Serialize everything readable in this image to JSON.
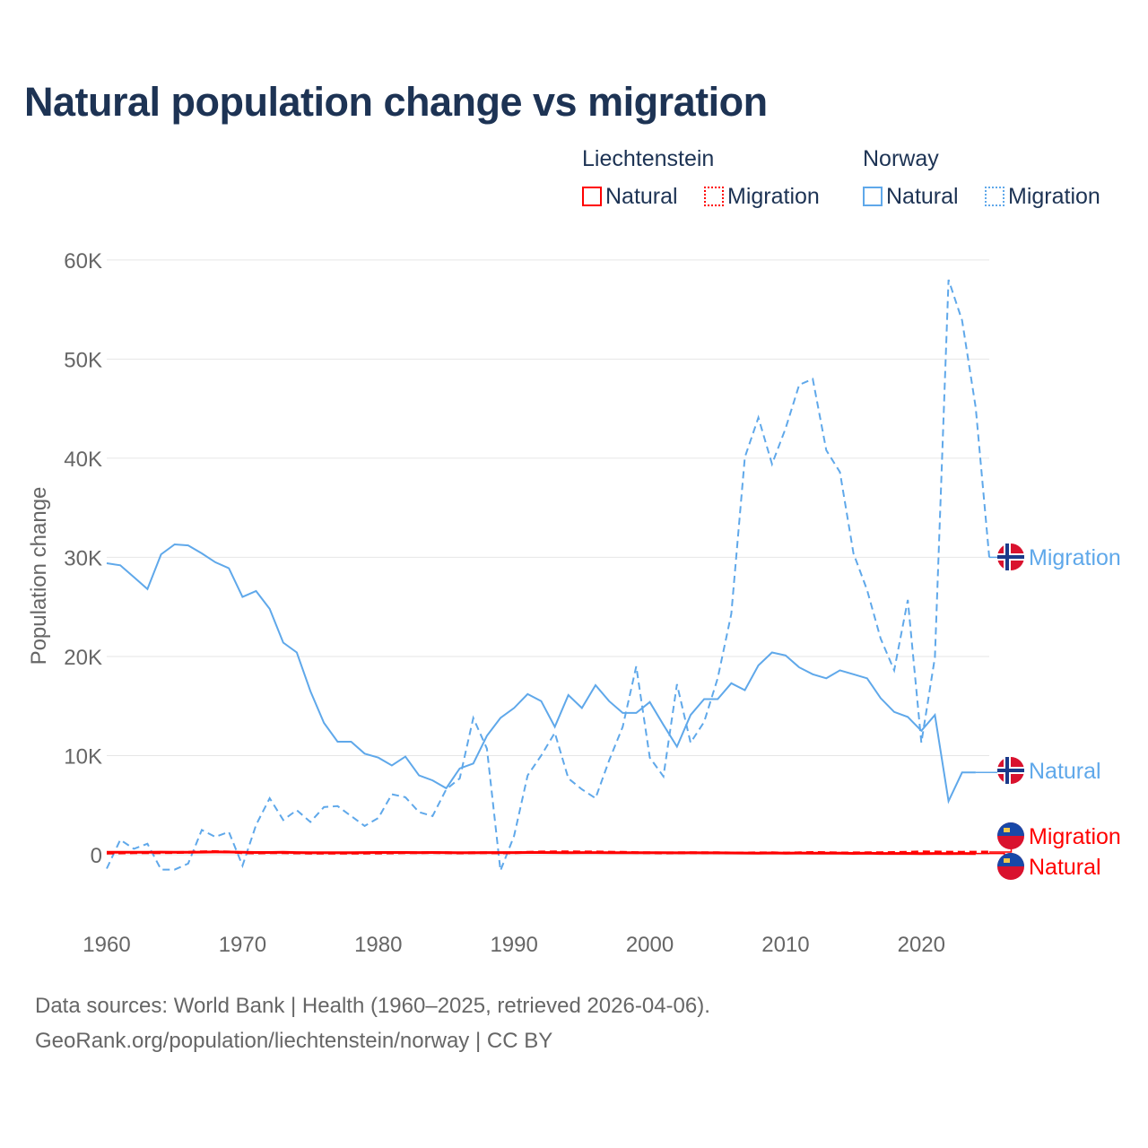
{
  "title": "Natural population change vs migration",
  "source_line1": "Data sources: World Bank | Health (1960–2025, retrieved 2026-04-06).",
  "source_line2": "GeoRank.org/population/liechtenstein/norway | CC BY",
  "colors": {
    "liechtenstein": "#ff0000",
    "norway": "#5fa8ea",
    "title": "#1d3354"
  },
  "chart_data": {
    "type": "line",
    "title": "Natural population change vs migration",
    "xlabel": "",
    "ylabel": "Population change",
    "xlim": [
      1960,
      2025
    ],
    "ylim": [
      -6000,
      62000
    ],
    "xticks": [
      1960,
      1970,
      1980,
      1990,
      2000,
      2010,
      2020
    ],
    "xtick_labels": [
      "1960",
      "1970",
      "1980",
      "1990",
      "2000",
      "2010",
      "2020"
    ],
    "yticks": [
      0,
      10000,
      20000,
      30000,
      40000,
      50000,
      60000
    ],
    "ytick_labels": [
      "0",
      "10K",
      "20K",
      "30K",
      "40K",
      "50K",
      "60K"
    ],
    "grid": true,
    "legend": "top-right",
    "legend_groups": [
      {
        "country": "Liechtenstein",
        "items": [
          "Natural",
          "Migration"
        ]
      },
      {
        "country": "Norway",
        "items": [
          "Natural",
          "Migration"
        ]
      }
    ],
    "x_start": 1960,
    "series": [
      {
        "name": "Liechtenstein Natural",
        "label": "Natural",
        "country": "Liechtenstein",
        "style": "solid",
        "values": [
          250,
          240,
          250,
          240,
          260,
          250,
          240,
          260,
          280,
          270,
          250,
          230,
          230,
          240,
          220,
          210,
          210,
          200,
          210,
          220,
          230,
          230,
          230,
          220,
          230,
          220,
          200,
          210,
          220,
          220,
          220,
          230,
          230,
          220,
          210,
          220,
          220,
          210,
          210,
          200,
          200,
          200,
          190,
          200,
          190,
          190,
          180,
          170,
          160,
          180,
          160,
          170,
          160,
          150,
          160,
          140,
          150,
          130,
          130,
          140,
          110,
          130,
          120,
          130,
          120,
          null
        ]
      },
      {
        "name": "Liechtenstein Migration",
        "label": "Migration",
        "country": "Liechtenstein",
        "style": "dashed",
        "values": [
          150,
          180,
          200,
          200,
          210,
          220,
          250,
          300,
          320,
          280,
          200,
          180,
          200,
          200,
          180,
          160,
          160,
          150,
          150,
          160,
          170,
          180,
          200,
          200,
          220,
          200,
          180,
          200,
          200,
          190,
          200,
          250,
          280,
          290,
          300,
          280,
          280,
          260,
          240,
          220,
          200,
          180,
          200,
          210,
          200,
          200,
          180,
          180,
          190,
          200,
          170,
          200,
          230,
          220,
          180,
          190,
          200,
          210,
          230,
          250,
          300,
          280,
          260,
          250,
          260,
          270
        ]
      },
      {
        "name": "Norway Natural",
        "label": "Natural",
        "country": "Norway",
        "style": "solid",
        "values": [
          29400,
          29200,
          28000,
          26800,
          30300,
          31300,
          31200,
          30400,
          29500,
          28900,
          26000,
          26600,
          24800,
          21400,
          20400,
          16500,
          13300,
          11400,
          11400,
          10200,
          9800,
          9000,
          9900,
          8000,
          7500,
          6700,
          8700,
          9200,
          12000,
          13800,
          14800,
          16200,
          15500,
          12900,
          16100,
          14800,
          17100,
          15500,
          14300,
          14300,
          15400,
          13100,
          10900,
          14100,
          15700,
          15700,
          17300,
          16600,
          19100,
          20400,
          20100,
          18900,
          18200,
          17800,
          18600,
          18200,
          17800,
          15800,
          14400,
          13900,
          12500,
          14100,
          5400,
          8300,
          8300,
          null
        ]
      },
      {
        "name": "Norway Migration",
        "label": "Migration",
        "country": "Norway",
        "style": "dashed",
        "values": [
          -1400,
          1500,
          600,
          1100,
          -1500,
          -1500,
          -900,
          2500,
          1800,
          2300,
          -1100,
          3000,
          5700,
          3500,
          4500,
          3300,
          4800,
          4900,
          3900,
          2900,
          3700,
          6100,
          5800,
          4300,
          3900,
          6600,
          7700,
          13800,
          10700,
          -1600,
          1900,
          8000,
          10000,
          12300,
          7700,
          6600,
          5700,
          9500,
          12900,
          19000,
          9800,
          7900,
          17200,
          11300,
          13400,
          17800,
          24300,
          40100,
          44100,
          39400,
          43000,
          47400,
          48000,
          40800,
          38600,
          30400,
          26700,
          21800,
          18600,
          25700,
          11300,
          19900,
          58000,
          53900,
          45100,
          30000
        ]
      }
    ]
  }
}
